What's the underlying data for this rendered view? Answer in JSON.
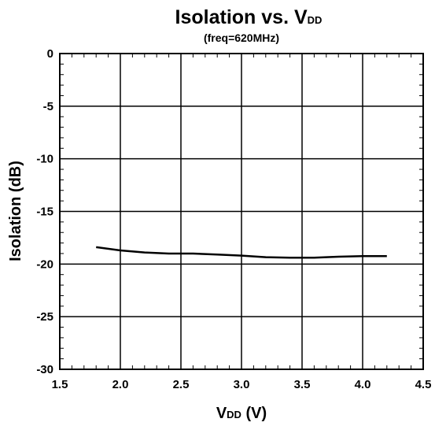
{
  "chart_data": {
    "type": "line",
    "title_main": "Isolation vs. V",
    "title_sub": "DD",
    "subtitle": "(freq=620MHz)",
    "xlabel_main": "V",
    "xlabel_sub": "DD",
    "xlabel_unit": " (V)",
    "ylabel": "Isolation (dB)",
    "xlim": [
      1.5,
      4.5
    ],
    "ylim": [
      -30,
      0
    ],
    "x_ticks": [
      1.5,
      2.0,
      2.5,
      3.0,
      3.5,
      4.0,
      4.5
    ],
    "x_tick_labels": [
      "1.5",
      "2.0",
      "2.5",
      "3.0",
      "3.5",
      "4.0",
      "4.5"
    ],
    "y_ticks": [
      0,
      -5,
      -10,
      -15,
      -20,
      -25,
      -30
    ],
    "y_tick_labels": [
      "0",
      "-5",
      "-10",
      "-15",
      "-20",
      "-25",
      "-30"
    ],
    "grid": true,
    "series": [
      {
        "color": "#000000",
        "x": [
          1.8,
          2.0,
          2.2,
          2.4,
          2.6,
          2.8,
          3.0,
          3.2,
          3.4,
          3.6,
          3.8,
          4.0,
          4.2
        ],
        "y": [
          -18.4,
          -18.7,
          -18.9,
          -19.0,
          -19.0,
          -19.1,
          -19.2,
          -19.35,
          -19.4,
          -19.4,
          -19.3,
          -19.25,
          -19.25
        ]
      }
    ]
  }
}
